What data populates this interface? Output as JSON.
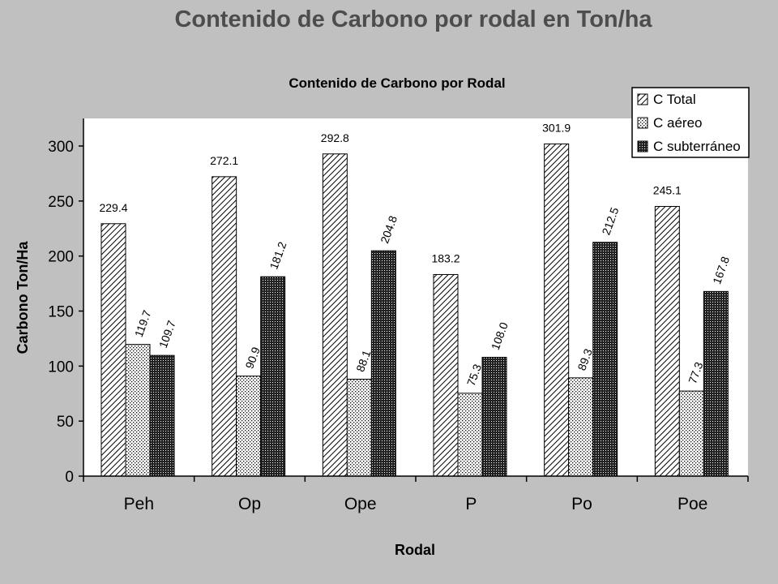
{
  "slide_title": "Contenido de Carbono por rodal en Ton/ha",
  "chart_data": {
    "type": "bar",
    "title": "Contenido de Carbono por Rodal",
    "xlabel": "Rodal",
    "ylabel": "Carbono Ton/Ha",
    "ylim": [
      0,
      320
    ],
    "yticks": [
      0,
      50,
      100,
      150,
      200,
      250,
      300
    ],
    "categories": [
      "Peh",
      "Op",
      "Ope",
      "P",
      "Po",
      "Poe"
    ],
    "legend_position": "top-right",
    "grid": false,
    "series": [
      {
        "name": "C Total",
        "pattern": "diagonal-hatch",
        "values": [
          229.4,
          272.1,
          292.8,
          183.2,
          301.9,
          245.1
        ],
        "labels": [
          "229.4",
          "272.1",
          "292.8",
          "183.2",
          "301.9",
          "245.1"
        ]
      },
      {
        "name": "C aéreo",
        "pattern": "dots",
        "values": [
          119.7,
          90.9,
          88.1,
          75.3,
          89.3,
          77.3
        ],
        "labels": [
          "119.7",
          "90.9",
          "88.1",
          "75.3",
          "89.3",
          "77.3"
        ]
      },
      {
        "name": "C subterráneo",
        "pattern": "dark-crosshatch",
        "values": [
          109.7,
          181.2,
          204.8,
          108.0,
          212.5,
          167.8
        ],
        "labels": [
          "109.7",
          "181.2",
          "204.8",
          "108.0",
          "212.5",
          "167.8"
        ]
      }
    ]
  }
}
